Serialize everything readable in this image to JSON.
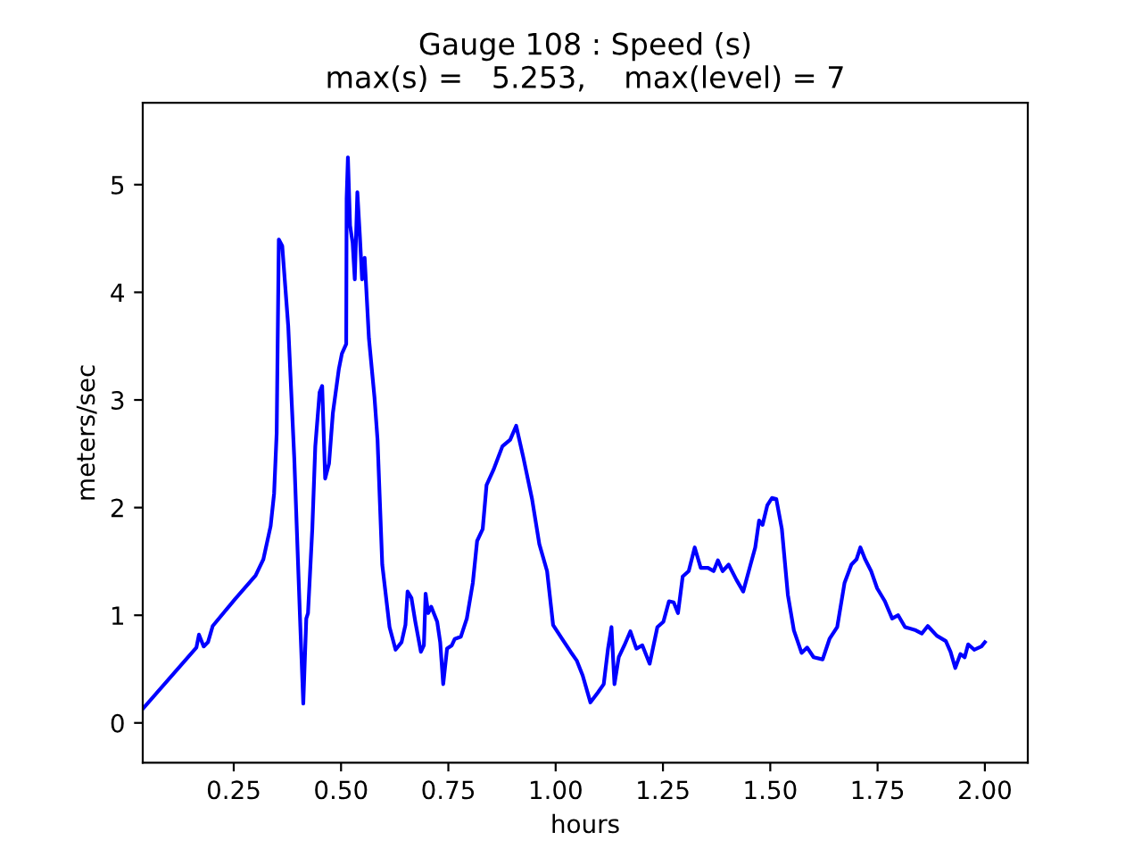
{
  "chart_data": {
    "type": "line",
    "title": "Gauge 108 : Speed (s)\nmax(s) =   5.253,    max(level) = 7",
    "xlabel": "hours",
    "ylabel": "meters/sec",
    "x": [
      0.038,
      0.163,
      0.169,
      0.18,
      0.19,
      0.201,
      0.253,
      0.301,
      0.319,
      0.336,
      0.344,
      0.35,
      0.355,
      0.363,
      0.377,
      0.391,
      0.405,
      0.412,
      0.419,
      0.423,
      0.433,
      0.44,
      0.45,
      0.456,
      0.463,
      0.472,
      0.481,
      0.495,
      0.502,
      0.512,
      0.513,
      0.516,
      0.521,
      0.527,
      0.532,
      0.538,
      0.544,
      0.549,
      0.555,
      0.565,
      0.578,
      0.585,
      0.596,
      0.613,
      0.627,
      0.641,
      0.65,
      0.655,
      0.664,
      0.673,
      0.686,
      0.693,
      0.697,
      0.703,
      0.71,
      0.724,
      0.731,
      0.738,
      0.747,
      0.758,
      0.765,
      0.779,
      0.793,
      0.807,
      0.817,
      0.83,
      0.839,
      0.855,
      0.876,
      0.894,
      0.908,
      0.925,
      0.945,
      0.962,
      0.98,
      0.994,
      1.015,
      1.035,
      1.049,
      1.063,
      1.081,
      1.098,
      1.112,
      1.122,
      1.13,
      1.137,
      1.147,
      1.16,
      1.174,
      1.188,
      1.202,
      1.219,
      1.237,
      1.251,
      1.264,
      1.275,
      1.285,
      1.296,
      1.31,
      1.324,
      1.338,
      1.355,
      1.368,
      1.378,
      1.389,
      1.403,
      1.421,
      1.437,
      1.454,
      1.465,
      1.474,
      1.482,
      1.493,
      1.504,
      1.514,
      1.527,
      1.541,
      1.555,
      1.573,
      1.586,
      1.601,
      1.622,
      1.638,
      1.656,
      1.673,
      1.689,
      1.701,
      1.71,
      1.721,
      1.735,
      1.749,
      1.767,
      1.784,
      1.798,
      1.814,
      1.839,
      1.853,
      1.867,
      1.888,
      1.909,
      1.92,
      1.931,
      1.943,
      1.953,
      1.961,
      1.975,
      1.992,
      2.0
    ],
    "series": [
      {
        "color": "#0000ff",
        "values": [
          0.13,
          0.7,
          0.82,
          0.71,
          0.75,
          0.9,
          1.15,
          1.37,
          1.52,
          1.83,
          2.13,
          2.69,
          4.49,
          4.43,
          3.68,
          2.46,
          0.91,
          0.18,
          0.97,
          1.02,
          1.8,
          2.57,
          3.07,
          3.13,
          2.27,
          2.41,
          2.88,
          3.29,
          3.43,
          3.52,
          4.87,
          5.253,
          4.62,
          4.46,
          4.12,
          4.93,
          4.51,
          4.12,
          4.32,
          3.57,
          3.02,
          2.63,
          1.47,
          0.89,
          0.68,
          0.75,
          0.91,
          1.22,
          1.16,
          0.94,
          0.66,
          0.72,
          1.2,
          1.02,
          1.08,
          0.94,
          0.75,
          0.36,
          0.69,
          0.72,
          0.78,
          0.8,
          0.97,
          1.3,
          1.69,
          1.8,
          2.21,
          2.35,
          2.57,
          2.63,
          2.76,
          2.46,
          2.08,
          1.66,
          1.41,
          0.91,
          0.78,
          0.66,
          0.58,
          0.44,
          0.19,
          0.28,
          0.36,
          0.69,
          0.89,
          0.36,
          0.61,
          0.72,
          0.85,
          0.69,
          0.72,
          0.55,
          0.89,
          0.94,
          1.13,
          1.12,
          1.02,
          1.36,
          1.41,
          1.63,
          1.44,
          1.44,
          1.41,
          1.51,
          1.41,
          1.47,
          1.33,
          1.22,
          1.47,
          1.63,
          1.88,
          1.84,
          2.02,
          2.09,
          2.08,
          1.8,
          1.19,
          0.86,
          0.65,
          0.7,
          0.61,
          0.59,
          0.78,
          0.89,
          1.3,
          1.47,
          1.52,
          1.63,
          1.52,
          1.41,
          1.25,
          1.13,
          0.97,
          1.0,
          0.89,
          0.86,
          0.83,
          0.9,
          0.81,
          0.76,
          0.66,
          0.51,
          0.64,
          0.61,
          0.73,
          0.68,
          0.71,
          0.75
        ]
      }
    ],
    "xlim": [
      0.038,
      2.1
    ],
    "ylim": [
      -0.37,
      5.76
    ],
    "xticks": [
      {
        "value": 0.25,
        "label": "0.25"
      },
      {
        "value": 0.5,
        "label": "0.50"
      },
      {
        "value": 0.75,
        "label": "0.75"
      },
      {
        "value": 1.0,
        "label": "1.00"
      },
      {
        "value": 1.25,
        "label": "1.25"
      },
      {
        "value": 1.5,
        "label": "1.50"
      },
      {
        "value": 1.75,
        "label": "1.75"
      },
      {
        "value": 2.0,
        "label": "2.00"
      }
    ],
    "yticks": [
      0,
      1,
      2,
      3,
      4,
      5
    ]
  }
}
